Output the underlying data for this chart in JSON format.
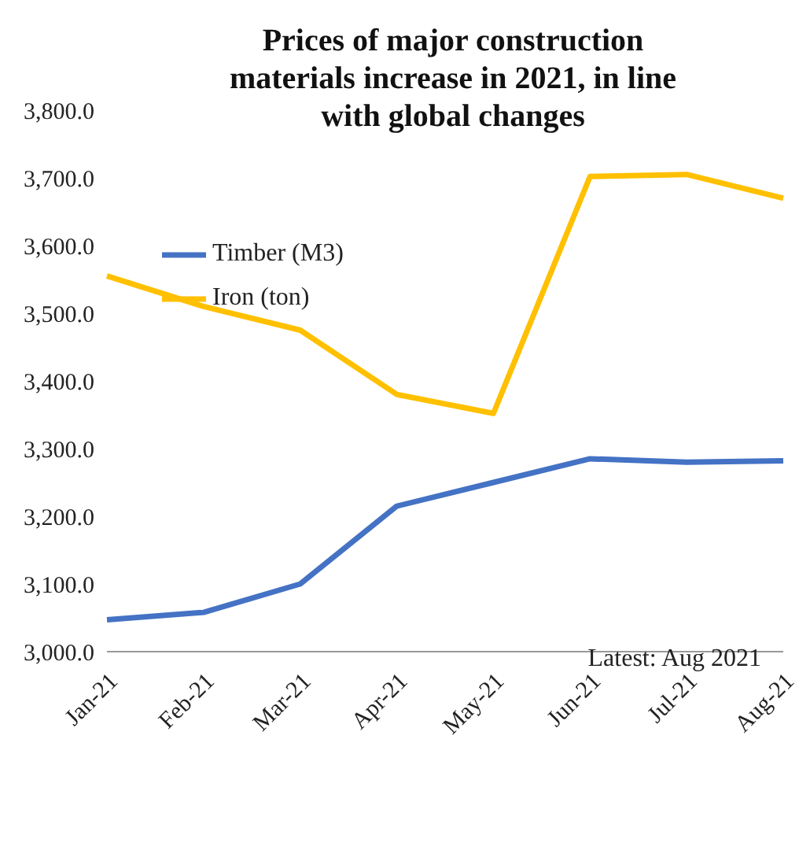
{
  "chart_data": {
    "type": "line",
    "title": "Prices of major construction materials increase in 2021, in line with global changes",
    "categories": [
      "Jan-21",
      "Feb-21",
      "Mar-21",
      "Apr-21",
      "May-21",
      "Jun-21",
      "Jul-21",
      "Aug-21"
    ],
    "series": [
      {
        "name": "Timber (M3)",
        "color": "#4472c4",
        "values": [
          3047,
          3058,
          3100,
          3215,
          3250,
          3285,
          3280,
          3282
        ]
      },
      {
        "name": "Iron (ton)",
        "color": "#ffc000",
        "values": [
          3555,
          3510,
          3475,
          3380,
          3352,
          3702,
          3705,
          3670
        ]
      }
    ],
    "ylim": [
      3000,
      3800
    ],
    "yticks": [
      {
        "value": 3000,
        "label": "3,000.0"
      },
      {
        "value": 3100,
        "label": "3,100.0"
      },
      {
        "value": 3200,
        "label": "3,200.0"
      },
      {
        "value": 3300,
        "label": "3,300.0"
      },
      {
        "value": 3400,
        "label": "3,400.0"
      },
      {
        "value": 3500,
        "label": "3,500.0"
      },
      {
        "value": 3600,
        "label": "3,600.0"
      },
      {
        "value": 3700,
        "label": "3,700.0"
      },
      {
        "value": 3800,
        "label": "3,800.0"
      }
    ],
    "legend": "top left",
    "marker": "none",
    "line_style": "solid",
    "annotations": [
      "Latest: Aug 2021"
    ]
  }
}
